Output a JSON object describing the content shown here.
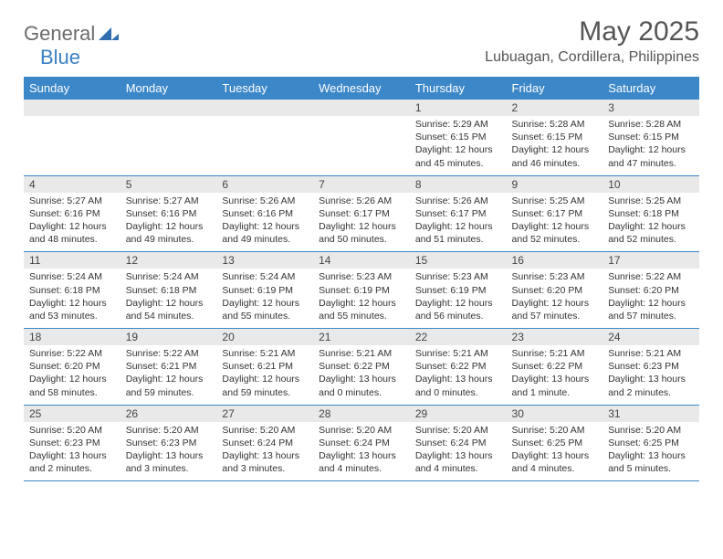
{
  "brand": {
    "word1": "General",
    "word2": "Blue",
    "mark_color": "#2f6fb0"
  },
  "header": {
    "month_title": "May 2025",
    "location": "Lubuagan, Cordillera, Philippines"
  },
  "colors": {
    "header_bg": "#3b87c8",
    "header_text": "#ffffff",
    "band_bg": "#e9e9e9",
    "rule": "#3b87c8",
    "body_text": "#333333"
  },
  "day_headers": [
    "Sunday",
    "Monday",
    "Tuesday",
    "Wednesday",
    "Thursday",
    "Friday",
    "Saturday"
  ],
  "weeks": [
    [
      {
        "num": "",
        "sunrise": "",
        "sunset": "",
        "daylight": ""
      },
      {
        "num": "",
        "sunrise": "",
        "sunset": "",
        "daylight": ""
      },
      {
        "num": "",
        "sunrise": "",
        "sunset": "",
        "daylight": ""
      },
      {
        "num": "",
        "sunrise": "",
        "sunset": "",
        "daylight": ""
      },
      {
        "num": "1",
        "sunrise": "Sunrise: 5:29 AM",
        "sunset": "Sunset: 6:15 PM",
        "daylight": "Daylight: 12 hours and 45 minutes."
      },
      {
        "num": "2",
        "sunrise": "Sunrise: 5:28 AM",
        "sunset": "Sunset: 6:15 PM",
        "daylight": "Daylight: 12 hours and 46 minutes."
      },
      {
        "num": "3",
        "sunrise": "Sunrise: 5:28 AM",
        "sunset": "Sunset: 6:15 PM",
        "daylight": "Daylight: 12 hours and 47 minutes."
      }
    ],
    [
      {
        "num": "4",
        "sunrise": "Sunrise: 5:27 AM",
        "sunset": "Sunset: 6:16 PM",
        "daylight": "Daylight: 12 hours and 48 minutes."
      },
      {
        "num": "5",
        "sunrise": "Sunrise: 5:27 AM",
        "sunset": "Sunset: 6:16 PM",
        "daylight": "Daylight: 12 hours and 49 minutes."
      },
      {
        "num": "6",
        "sunrise": "Sunrise: 5:26 AM",
        "sunset": "Sunset: 6:16 PM",
        "daylight": "Daylight: 12 hours and 49 minutes."
      },
      {
        "num": "7",
        "sunrise": "Sunrise: 5:26 AM",
        "sunset": "Sunset: 6:17 PM",
        "daylight": "Daylight: 12 hours and 50 minutes."
      },
      {
        "num": "8",
        "sunrise": "Sunrise: 5:26 AM",
        "sunset": "Sunset: 6:17 PM",
        "daylight": "Daylight: 12 hours and 51 minutes."
      },
      {
        "num": "9",
        "sunrise": "Sunrise: 5:25 AM",
        "sunset": "Sunset: 6:17 PM",
        "daylight": "Daylight: 12 hours and 52 minutes."
      },
      {
        "num": "10",
        "sunrise": "Sunrise: 5:25 AM",
        "sunset": "Sunset: 6:18 PM",
        "daylight": "Daylight: 12 hours and 52 minutes."
      }
    ],
    [
      {
        "num": "11",
        "sunrise": "Sunrise: 5:24 AM",
        "sunset": "Sunset: 6:18 PM",
        "daylight": "Daylight: 12 hours and 53 minutes."
      },
      {
        "num": "12",
        "sunrise": "Sunrise: 5:24 AM",
        "sunset": "Sunset: 6:18 PM",
        "daylight": "Daylight: 12 hours and 54 minutes."
      },
      {
        "num": "13",
        "sunrise": "Sunrise: 5:24 AM",
        "sunset": "Sunset: 6:19 PM",
        "daylight": "Daylight: 12 hours and 55 minutes."
      },
      {
        "num": "14",
        "sunrise": "Sunrise: 5:23 AM",
        "sunset": "Sunset: 6:19 PM",
        "daylight": "Daylight: 12 hours and 55 minutes."
      },
      {
        "num": "15",
        "sunrise": "Sunrise: 5:23 AM",
        "sunset": "Sunset: 6:19 PM",
        "daylight": "Daylight: 12 hours and 56 minutes."
      },
      {
        "num": "16",
        "sunrise": "Sunrise: 5:23 AM",
        "sunset": "Sunset: 6:20 PM",
        "daylight": "Daylight: 12 hours and 57 minutes."
      },
      {
        "num": "17",
        "sunrise": "Sunrise: 5:22 AM",
        "sunset": "Sunset: 6:20 PM",
        "daylight": "Daylight: 12 hours and 57 minutes."
      }
    ],
    [
      {
        "num": "18",
        "sunrise": "Sunrise: 5:22 AM",
        "sunset": "Sunset: 6:20 PM",
        "daylight": "Daylight: 12 hours and 58 minutes."
      },
      {
        "num": "19",
        "sunrise": "Sunrise: 5:22 AM",
        "sunset": "Sunset: 6:21 PM",
        "daylight": "Daylight: 12 hours and 59 minutes."
      },
      {
        "num": "20",
        "sunrise": "Sunrise: 5:21 AM",
        "sunset": "Sunset: 6:21 PM",
        "daylight": "Daylight: 12 hours and 59 minutes."
      },
      {
        "num": "21",
        "sunrise": "Sunrise: 5:21 AM",
        "sunset": "Sunset: 6:22 PM",
        "daylight": "Daylight: 13 hours and 0 minutes."
      },
      {
        "num": "22",
        "sunrise": "Sunrise: 5:21 AM",
        "sunset": "Sunset: 6:22 PM",
        "daylight": "Daylight: 13 hours and 0 minutes."
      },
      {
        "num": "23",
        "sunrise": "Sunrise: 5:21 AM",
        "sunset": "Sunset: 6:22 PM",
        "daylight": "Daylight: 13 hours and 1 minute."
      },
      {
        "num": "24",
        "sunrise": "Sunrise: 5:21 AM",
        "sunset": "Sunset: 6:23 PM",
        "daylight": "Daylight: 13 hours and 2 minutes."
      }
    ],
    [
      {
        "num": "25",
        "sunrise": "Sunrise: 5:20 AM",
        "sunset": "Sunset: 6:23 PM",
        "daylight": "Daylight: 13 hours and 2 minutes."
      },
      {
        "num": "26",
        "sunrise": "Sunrise: 5:20 AM",
        "sunset": "Sunset: 6:23 PM",
        "daylight": "Daylight: 13 hours and 3 minutes."
      },
      {
        "num": "27",
        "sunrise": "Sunrise: 5:20 AM",
        "sunset": "Sunset: 6:24 PM",
        "daylight": "Daylight: 13 hours and 3 minutes."
      },
      {
        "num": "28",
        "sunrise": "Sunrise: 5:20 AM",
        "sunset": "Sunset: 6:24 PM",
        "daylight": "Daylight: 13 hours and 4 minutes."
      },
      {
        "num": "29",
        "sunrise": "Sunrise: 5:20 AM",
        "sunset": "Sunset: 6:24 PM",
        "daylight": "Daylight: 13 hours and 4 minutes."
      },
      {
        "num": "30",
        "sunrise": "Sunrise: 5:20 AM",
        "sunset": "Sunset: 6:25 PM",
        "daylight": "Daylight: 13 hours and 4 minutes."
      },
      {
        "num": "31",
        "sunrise": "Sunrise: 5:20 AM",
        "sunset": "Sunset: 6:25 PM",
        "daylight": "Daylight: 13 hours and 5 minutes."
      }
    ]
  ]
}
